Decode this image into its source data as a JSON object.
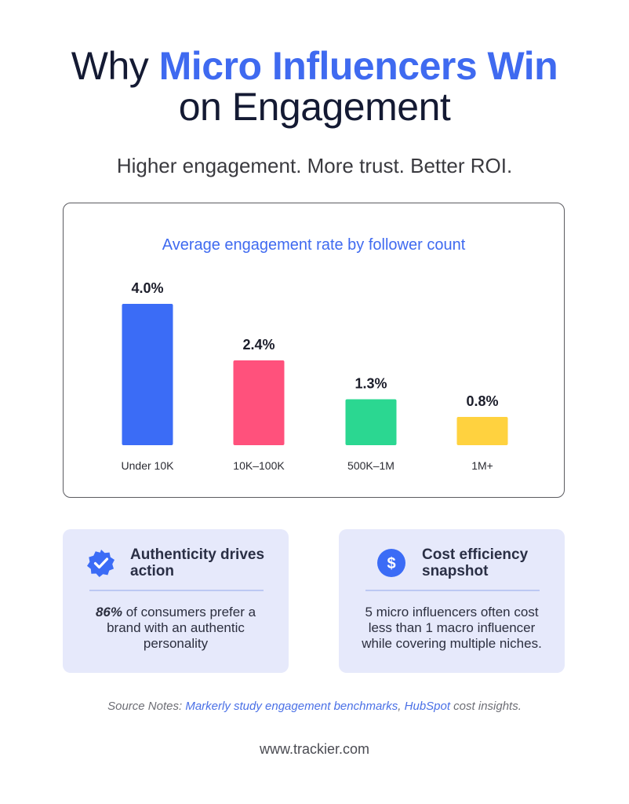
{
  "header": {
    "title_prefix": "Why",
    "title_accent": "Micro Influencers Win",
    "title_suffix": "on Engagement",
    "subtitle": "Higher engagement. More trust. Better ROI."
  },
  "colors": {
    "accent": "#3f6af0",
    "bar_blue": "#3b6cf6",
    "bar_pink": "#ff517c",
    "bar_green": "#2bd791",
    "bar_yellow": "#ffd23f",
    "card_bg": "#e6e9fb"
  },
  "chart_data": {
    "type": "bar",
    "title": "Average engagement rate by follower count",
    "categories": [
      "Under 10K",
      "10K–100K",
      "500K–1M",
      "1M+"
    ],
    "values": [
      4.0,
      2.4,
      1.3,
      0.8
    ],
    "value_labels": [
      "4.0%",
      "2.4%",
      "1.3%",
      "0.8%"
    ],
    "bar_colors": [
      "#3b6cf6",
      "#ff517c",
      "#2bd791",
      "#ffd23f"
    ],
    "unit": "%",
    "ylim": [
      0,
      4.0
    ],
    "grid": false,
    "legend": "none"
  },
  "cards": [
    {
      "icon": "verified-badge-icon",
      "heading": "Authenticity drives action",
      "body_stat": "86%",
      "body_text": " of consumers prefer a brand with an authentic personality"
    },
    {
      "icon": "dollar-icon",
      "heading": "Cost efficiency snapshot",
      "body_text": "5 micro influencers often cost less than 1 macro influencer while covering multiple niches."
    }
  ],
  "source": {
    "prefix": "Source Notes: ",
    "link1": "Markerly study engagement benchmarks",
    "separator": ", ",
    "link2": "HubSpot",
    "suffix": " cost insights."
  },
  "footer": {
    "url": "www.trackier.com"
  }
}
